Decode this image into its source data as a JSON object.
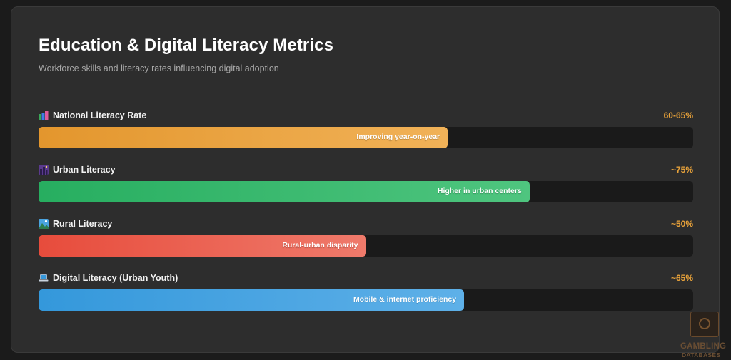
{
  "header": {
    "title": "Education & Digital Literacy Metrics",
    "subtitle": "Workforce skills and literacy rates influencing digital adoption"
  },
  "metrics": [
    {
      "icon": "books-icon",
      "label": "National Literacy Rate",
      "value": "60-65%",
      "fill_percent": 62.5,
      "bar_text": "Improving year-on-year",
      "color_start": "#e3962d",
      "color_end": "#f1b258"
    },
    {
      "icon": "city-night-icon",
      "label": "Urban Literacy",
      "value": "~75%",
      "fill_percent": 75,
      "bar_text": "Higher in urban centers",
      "color_start": "#27ae60",
      "color_end": "#4fc57f"
    },
    {
      "icon": "landscape-icon",
      "label": "Rural Literacy",
      "value": "~50%",
      "fill_percent": 50,
      "bar_text": "Rural-urban disparity",
      "color_start": "#e74c3c",
      "color_end": "#ef7a6b"
    },
    {
      "icon": "laptop-icon",
      "label": "Digital Literacy (Urban Youth)",
      "value": "~65%",
      "fill_percent": 65,
      "bar_text": "Mobile & internet proficiency",
      "color_start": "#3498db",
      "color_end": "#5eb0e8"
    }
  ],
  "watermark": {
    "line1": "GAMBLING",
    "line2": "DATABASES"
  }
}
